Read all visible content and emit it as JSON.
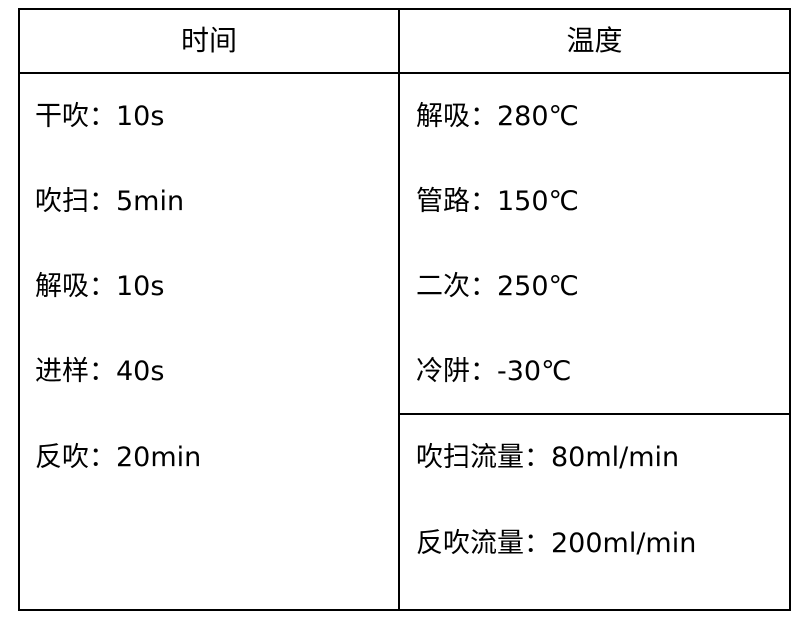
{
  "table": {
    "headers": [
      "时间",
      "温度"
    ],
    "time_items": [
      "干吹：10s",
      "吹扫：5min",
      "解吸：10s",
      "进样：40s",
      "反吹：20min"
    ],
    "temperature_items": [
      "解吸：280℃",
      "管路：150℃",
      "二次：250℃",
      "冷阱：-30℃"
    ],
    "flow_items": [
      "吹扫流量：80ml/min",
      "反吹流量：200ml/min"
    ]
  }
}
